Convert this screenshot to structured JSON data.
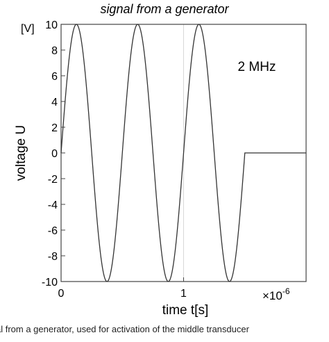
{
  "chart_data": {
    "type": "line",
    "title": "signal from a generator",
    "ylabel": "voltage U",
    "yunit": "[V]",
    "xlabel": "time t[s]",
    "x_multiplier": "×10",
    "x_multiplier_exp": "-6",
    "xlim": [
      0,
      2
    ],
    "ylim": [
      -10,
      10
    ],
    "xticks": [
      0,
      1
    ],
    "xtick_labels": [
      "0",
      "1"
    ],
    "yticks": [
      10,
      8,
      6,
      4,
      2,
      0,
      -2,
      -4,
      -6,
      -8,
      -10
    ],
    "ytick_labels": [
      "10",
      "8",
      "6",
      "4",
      "2",
      "0",
      "-2",
      "-4",
      "-6",
      "-8",
      "-10"
    ],
    "grid": true,
    "annotation": "2 MHz",
    "series": [
      {
        "color": "#333333",
        "frequency_hz": 2000000,
        "amplitude_v": 10,
        "burst_cycles": 3,
        "burst_end_x": 1.5,
        "x": [
          0,
          0.025,
          0.05,
          0.075,
          0.1,
          0.125,
          0.15,
          0.175,
          0.2,
          0.225,
          0.25,
          0.275,
          0.3,
          0.325,
          0.35,
          0.375,
          0.4,
          0.425,
          0.45,
          0.475,
          0.5,
          0.525,
          0.55,
          0.575,
          0.6,
          0.625,
          0.65,
          0.675,
          0.7,
          0.725,
          0.75,
          0.775,
          0.8,
          0.825,
          0.85,
          0.875,
          0.9,
          0.925,
          0.95,
          0.975,
          1.0,
          1.025,
          1.05,
          1.075,
          1.1,
          1.125,
          1.15,
          1.175,
          1.2,
          1.225,
          1.25,
          1.275,
          1.3,
          1.325,
          1.35,
          1.375,
          1.4,
          1.425,
          1.45,
          1.475,
          1.5,
          2.0
        ],
        "y": [
          0,
          3.09,
          5.88,
          8.09,
          9.51,
          10,
          9.51,
          8.09,
          5.88,
          3.09,
          0,
          -3.09,
          -5.88,
          -8.09,
          -9.51,
          -10,
          -9.51,
          -8.09,
          -5.88,
          -3.09,
          0,
          3.09,
          5.88,
          8.09,
          9.51,
          10,
          9.51,
          8.09,
          5.88,
          3.09,
          0,
          -3.09,
          -5.88,
          -8.09,
          -9.51,
          -10,
          -9.51,
          -8.09,
          -5.88,
          -3.09,
          0,
          3.09,
          5.88,
          8.09,
          9.51,
          10,
          9.51,
          8.09,
          5.88,
          3.09,
          0,
          -3.09,
          -5.88,
          -8.09,
          -9.51,
          -10,
          -9.51,
          -8.09,
          -5.88,
          -3.09,
          0,
          0
        ]
      }
    ]
  },
  "caption": "al from a generator, used for activation of the middle transducer"
}
